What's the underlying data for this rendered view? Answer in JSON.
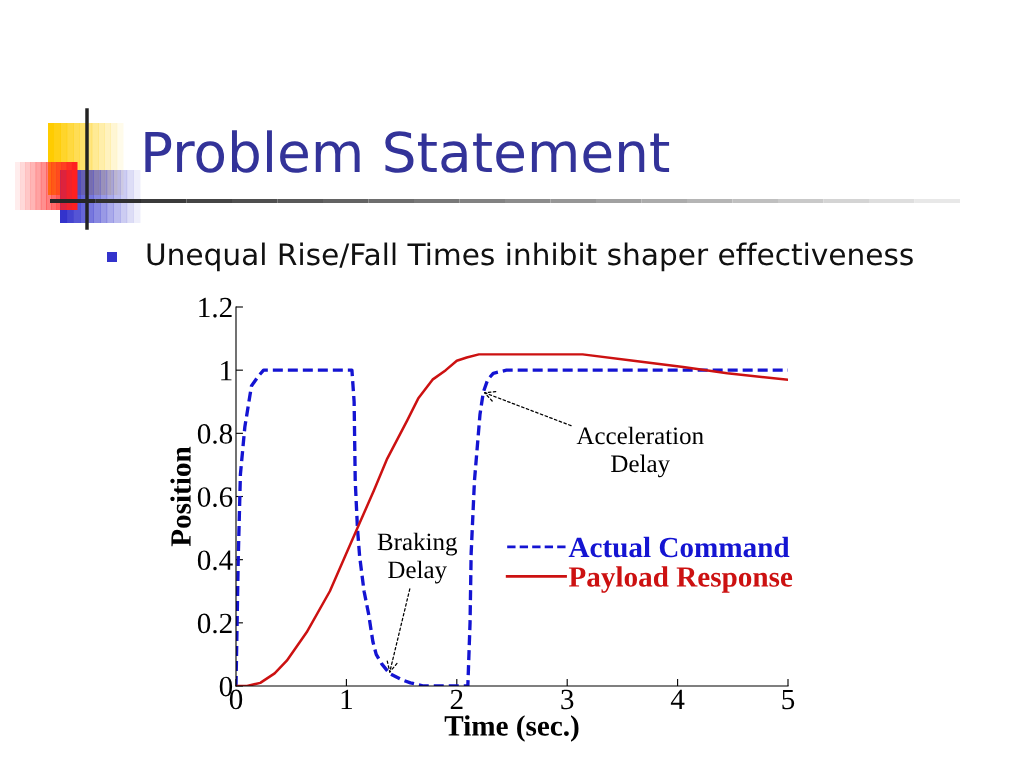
{
  "chart_data": {
    "type": "line",
    "title": "Problem Statement",
    "subtitle": "Unequal Rise/Fall Times inhibit shaper effectiveness",
    "xlabel": "Time (sec.)",
    "ylabel": "Position",
    "xlim": [
      0,
      5
    ],
    "xticks": [
      0,
      1,
      2,
      3,
      4,
      5
    ],
    "ylim": [
      0,
      1.2
    ],
    "yticks": [
      0,
      0.2,
      0.4,
      0.6,
      0.8,
      1,
      1.2
    ],
    "grid": false,
    "legend": "right",
    "series": [
      {
        "name": "Actual Command",
        "color": "#1414d2",
        "line_style": "dashed",
        "x": [
          0,
          0.02,
          0.04,
          0.08,
          0.14,
          0.2,
          0.25,
          1.05,
          1.07,
          1.08,
          1.1,
          1.12,
          1.16,
          1.2,
          1.24,
          1.27,
          1.32,
          1.39,
          1.5,
          1.58,
          1.7,
          2.1,
          2.12,
          2.13,
          2.16,
          2.21,
          2.24,
          2.28,
          2.33,
          2.45,
          5
        ],
        "values": [
          0,
          0.4,
          0.67,
          0.82,
          0.95,
          0.98,
          1,
          1,
          0.9,
          0.65,
          0.5,
          0.41,
          0.3,
          0.23,
          0.14,
          0.1,
          0.07,
          0.04,
          0.02,
          0.01,
          0,
          0,
          0.2,
          0.42,
          0.65,
          0.86,
          0.93,
          0.97,
          0.99,
          1,
          1
        ]
      },
      {
        "name": "Payload Response",
        "color": "#cc1111",
        "line_style": "solid",
        "x": [
          0,
          0.1,
          0.22,
          0.35,
          0.46,
          0.64,
          0.85,
          1.0,
          1.1,
          1.25,
          1.37,
          1.55,
          1.65,
          1.78,
          1.9,
          2.0,
          2.09,
          2.2,
          2.33,
          2.57,
          3.14,
          3.6,
          4.05,
          4.45,
          5
        ],
        "values": [
          0,
          0,
          0.01,
          0.04,
          0.08,
          0.17,
          0.3,
          0.42,
          0.5,
          0.62,
          0.72,
          0.84,
          0.91,
          0.97,
          1.0,
          1.03,
          1.04,
          1.05,
          1.05,
          1.05,
          1.05,
          1.03,
          1.01,
          0.99,
          0.97
        ]
      }
    ],
    "annotations": [
      {
        "text": "Braking\nDelay",
        "x": 1.39,
        "y": 0.04
      },
      {
        "text": "Acceleration\nDelay",
        "x": 2.24,
        "y": 0.93
      }
    ]
  }
}
